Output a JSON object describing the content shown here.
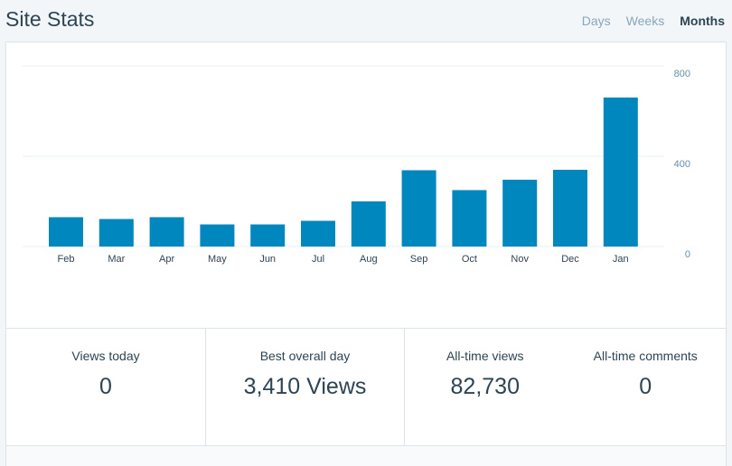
{
  "header": {
    "title": "Site Stats",
    "tabs": [
      {
        "label": "Days",
        "active": false
      },
      {
        "label": "Weeks",
        "active": false
      },
      {
        "label": "Months",
        "active": true
      }
    ]
  },
  "chart_data": {
    "type": "bar",
    "categories": [
      "Feb",
      "Mar",
      "Apr",
      "May",
      "Jun",
      "Jul",
      "Aug",
      "Sep",
      "Oct",
      "Nov",
      "Dec",
      "Jan"
    ],
    "values": [
      130,
      122,
      130,
      98,
      98,
      114,
      200,
      338,
      250,
      296,
      340,
      660
    ],
    "ylim": [
      0,
      800
    ],
    "yticks": [
      "800",
      "400",
      "0"
    ],
    "ytick_values": [
      800,
      400,
      0
    ],
    "bar_color": "#0087be",
    "grid": true
  },
  "stats": {
    "views_today": {
      "label": "Views today",
      "value": "0"
    },
    "best_day": {
      "label": "Best overall day",
      "value": "3,410 Views"
    },
    "alltime_views": {
      "label": "All-time views",
      "value": "82,730"
    },
    "alltime_comments": {
      "label": "All-time comments",
      "value": "0"
    }
  },
  "colors": {
    "accent": "#0087be",
    "text": "#2e4453",
    "muted": "#87a6bc"
  }
}
